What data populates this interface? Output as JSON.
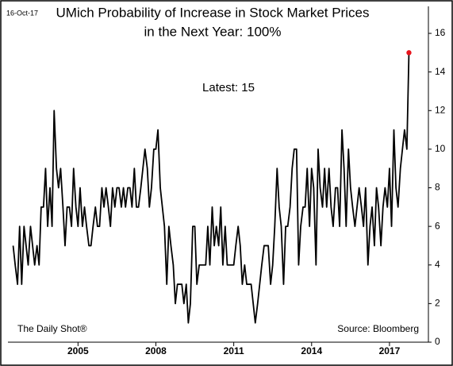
{
  "chart_data": {
    "type": "line",
    "title": [
      "UMich Probability of Increase in Stock Market Prices",
      "in the Next Year: 100%"
    ],
    "date_label": "16-Oct-17",
    "annotation": "Latest:  15",
    "footer_left": "The Daily Shot®",
    "footer_right": "Source: Bloomberg",
    "color": "#000000",
    "last_point_color": "#e8141c",
    "x": [
      2002.5,
      2002.58,
      2002.67,
      2002.75,
      2002.83,
      2002.92,
      2003.0,
      2003.08,
      2003.17,
      2003.25,
      2003.33,
      2003.42,
      2003.5,
      2003.58,
      2003.67,
      2003.75,
      2003.83,
      2003.92,
      2004.0,
      2004.08,
      2004.17,
      2004.25,
      2004.33,
      2004.42,
      2004.5,
      2004.58,
      2004.67,
      2004.75,
      2004.83,
      2004.92,
      2005.0,
      2005.08,
      2005.17,
      2005.25,
      2005.33,
      2005.42,
      2005.5,
      2005.58,
      2005.67,
      2005.75,
      2005.83,
      2005.92,
      2006.0,
      2006.08,
      2006.17,
      2006.25,
      2006.33,
      2006.42,
      2006.5,
      2006.58,
      2006.67,
      2006.75,
      2006.83,
      2006.92,
      2007.0,
      2007.08,
      2007.17,
      2007.25,
      2007.33,
      2007.42,
      2007.5,
      2007.58,
      2007.67,
      2007.75,
      2007.83,
      2007.92,
      2008.0,
      2008.08,
      2008.17,
      2008.25,
      2008.33,
      2008.42,
      2008.5,
      2008.58,
      2008.67,
      2008.75,
      2008.83,
      2008.92,
      2009.0,
      2009.08,
      2009.17,
      2009.25,
      2009.33,
      2009.42,
      2009.5,
      2009.58,
      2009.67,
      2009.75,
      2009.83,
      2009.92,
      2010.0,
      2010.08,
      2010.17,
      2010.25,
      2010.33,
      2010.42,
      2010.5,
      2010.58,
      2010.67,
      2010.75,
      2010.83,
      2010.92,
      2011.0,
      2011.08,
      2011.17,
      2011.25,
      2011.33,
      2011.42,
      2011.5,
      2011.58,
      2011.67,
      2011.75,
      2011.83,
      2011.92,
      2012.0,
      2012.08,
      2012.17,
      2012.25,
      2012.33,
      2012.42,
      2012.5,
      2012.58,
      2012.67,
      2012.75,
      2012.83,
      2012.92,
      2013.0,
      2013.08,
      2013.17,
      2013.25,
      2013.33,
      2013.42,
      2013.5,
      2013.58,
      2013.67,
      2013.75,
      2013.83,
      2013.92,
      2014.0,
      2014.08,
      2014.17,
      2014.25,
      2014.33,
      2014.42,
      2014.5,
      2014.58,
      2014.67,
      2014.75,
      2014.83,
      2014.92,
      2015.0,
      2015.08,
      2015.17,
      2015.25,
      2015.33,
      2015.42,
      2015.5,
      2015.58,
      2015.67,
      2015.75,
      2015.83,
      2015.92,
      2016.0,
      2016.08,
      2016.17,
      2016.25,
      2016.33,
      2016.42,
      2016.5,
      2016.58,
      2016.67,
      2016.75,
      2016.83,
      2016.92,
      2017.0,
      2017.08,
      2017.17,
      2017.25,
      2017.33,
      2017.42,
      2017.5,
      2017.58,
      2017.67,
      2017.75
    ],
    "values": [
      5,
      4,
      3,
      6,
      3,
      6,
      5,
      4,
      6,
      5,
      4,
      5,
      4,
      7,
      7,
      9,
      6,
      8,
      6,
      12,
      9,
      8,
      9,
      7,
      5,
      7,
      7,
      6,
      9,
      7,
      6,
      8,
      6,
      7,
      6,
      5,
      5,
      6,
      7,
      6,
      6,
      8,
      7,
      8,
      7,
      6,
      8,
      7,
      8,
      8,
      7,
      8,
      7,
      8,
      8,
      7,
      9,
      7,
      7,
      8,
      9,
      10,
      9,
      7,
      8,
      10,
      10,
      11,
      8,
      7,
      6,
      3,
      6,
      5,
      4,
      2,
      3,
      3,
      3,
      2,
      3,
      1,
      2,
      6,
      6,
      3,
      4,
      4,
      4,
      4,
      6,
      4,
      7,
      5,
      6,
      5,
      7,
      4,
      6,
      4,
      4,
      4,
      4,
      5,
      6,
      5,
      3,
      4,
      3,
      3,
      3,
      2,
      1,
      2,
      3,
      4,
      5,
      5,
      5,
      3,
      4,
      6,
      9,
      7,
      6,
      3,
      6,
      6,
      7,
      9,
      10,
      10,
      4,
      6,
      7,
      7,
      9,
      6,
      9,
      8,
      4,
      10,
      8,
      7,
      9,
      7,
      9,
      7,
      6,
      8,
      8,
      6,
      11,
      9,
      6,
      10,
      8,
      7,
      6,
      7,
      8,
      7,
      6,
      8,
      4,
      6,
      7,
      5,
      8,
      7,
      5,
      7,
      8,
      7,
      9,
      6,
      11,
      8,
      7,
      9,
      10,
      11,
      10,
      15
    ],
    "xlim": [
      2002.3,
      2018.5
    ],
    "xticks": [
      2005,
      2008,
      2011,
      2014,
      2017
    ],
    "ylim": [
      0,
      17.4
    ],
    "yticks": [
      0,
      2,
      4,
      6,
      8,
      10,
      12,
      14,
      16
    ]
  }
}
